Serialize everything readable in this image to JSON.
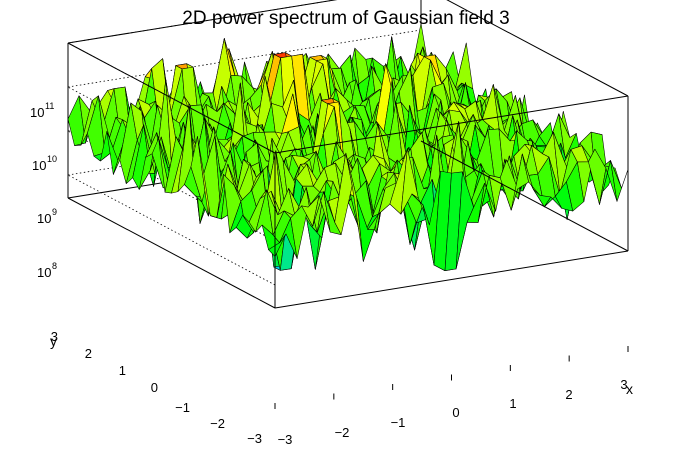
{
  "chart_data": {
    "type": "surface",
    "title": "2D power spectrum of Gaussian field 3",
    "xlabel": "x",
    "ylabel": "y",
    "zlabel": "",
    "xlim": [
      -3,
      3
    ],
    "ylim": [
      -3,
      3
    ],
    "zlim": [
      30000000,
      100000000000
    ],
    "zscale": "log",
    "x_ticks": [
      "−3",
      "−2",
      "−1",
      "0",
      "1",
      "2",
      "3"
    ],
    "y_ticks": [
      "−3",
      "−2",
      "−1",
      "0",
      "1",
      "2",
      "3"
    ],
    "z_ticks": [
      {
        "base": "10",
        "exp": "8",
        "value": 100000000
      },
      {
        "base": "10",
        "exp": "9",
        "value": 1000000000
      },
      {
        "base": "10",
        "exp": "10",
        "value": 10000000000
      },
      {
        "base": "10",
        "exp": "11",
        "value": 100000000000
      }
    ],
    "grid": true,
    "colormap": "rainbow (cyan → green → yellow → red, by z)",
    "grid_points": 33,
    "surface_log10_z_samples": {
      "typical_range": [
        8.5,
        10.0
      ],
      "peaks": [
        {
          "x": -0.2,
          "y": 1.4,
          "log10_z": 10.8
        },
        {
          "x": -1.4,
          "y": 2.4,
          "log10_z": 10.4
        },
        {
          "x": -0.5,
          "y": -0.3,
          "log10_z": 10.5
        },
        {
          "x": 0.6,
          "y": 1.9,
          "log10_z": 10.3
        },
        {
          "x": 2.1,
          "y": 1.3,
          "log10_z": 10.3
        }
      ],
      "dips": [
        {
          "x": 0.1,
          "y": -2.7,
          "log10_z": 7.6
        },
        {
          "x": -2.1,
          "y": -1.8,
          "log10_z": 7.7
        }
      ]
    }
  },
  "colors": {
    "low": "#00d8e8",
    "mid": "#00ff00",
    "mid_high": "#ffff00",
    "high": "#ff2000"
  }
}
